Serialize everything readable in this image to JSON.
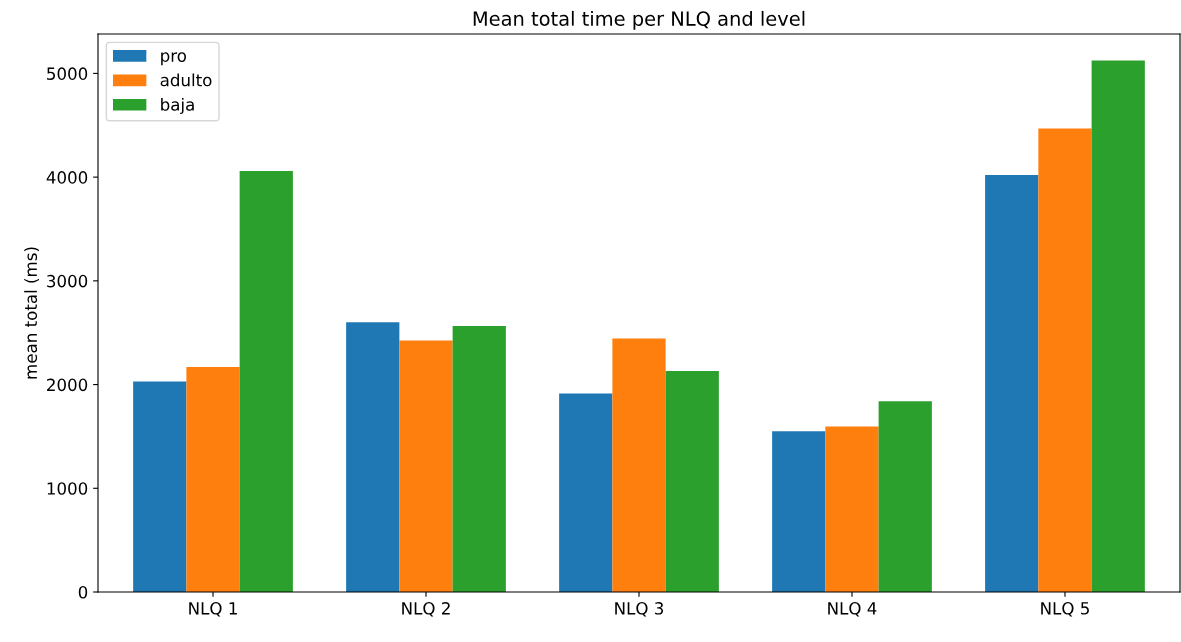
{
  "chart_data": {
    "type": "bar",
    "title": "Mean total time per NLQ and level",
    "ylabel": "mean total (ms)",
    "categories": [
      "NLQ 1",
      "NLQ 2",
      "NLQ 3",
      "NLQ 4",
      "NLQ 5"
    ],
    "series": [
      {
        "name": "pro",
        "color": "#1f77b4",
        "values": [
          2030,
          2600,
          1915,
          1550,
          4020
        ]
      },
      {
        "name": "adulto",
        "color": "#ff7f0e",
        "values": [
          2170,
          2425,
          2445,
          1595,
          4470
        ]
      },
      {
        "name": "baja",
        "color": "#2ca02c",
        "values": [
          4060,
          2565,
          2130,
          1840,
          5125
        ]
      }
    ],
    "ylim": [
      0,
      5380
    ],
    "yticks": [
      0,
      1000,
      2000,
      3000,
      4000,
      5000
    ],
    "grid": false,
    "legend": "top left"
  }
}
